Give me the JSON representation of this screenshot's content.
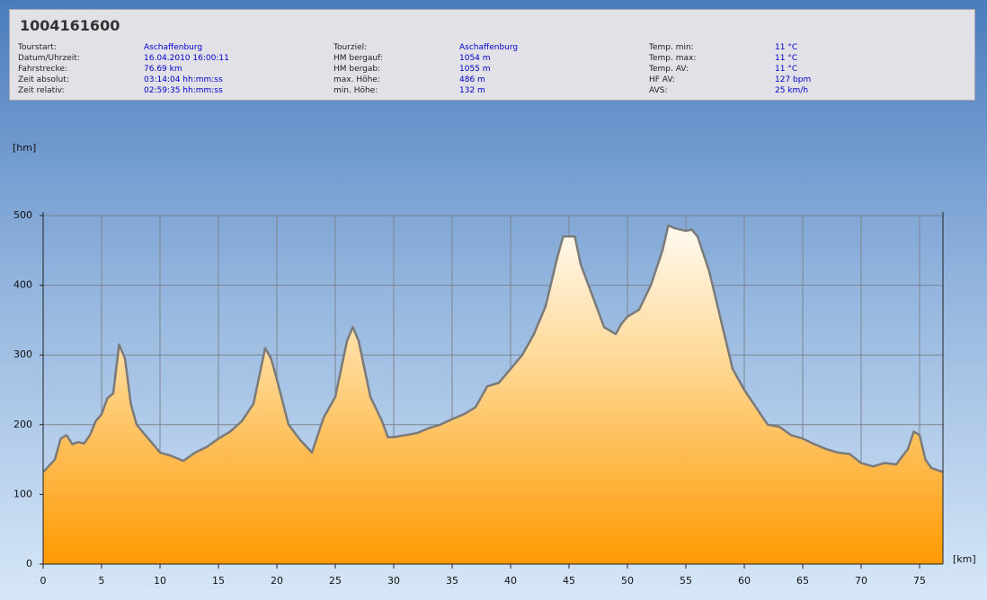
{
  "header": {
    "title": "1004161600",
    "columns": [
      [
        {
          "label": "Tourstart:",
          "value": "Aschaffenburg"
        },
        {
          "label": "Datum/Uhrzeit:",
          "value": "16.04.2010 16:00:11"
        },
        {
          "label": "Fahrstrecke:",
          "value": "76.69 km"
        },
        {
          "label": "Zeit absolut:",
          "value": "03:14:04 hh:mm:ss"
        },
        {
          "label": "Zeit relativ:",
          "value": "02:59:35 hh:mm:ss"
        }
      ],
      [
        {
          "label": "Tourziel:",
          "value": "Aschaffenburg"
        },
        {
          "label": "HM bergauf:",
          "value": "1054 m"
        },
        {
          "label": "HM bergab:",
          "value": "1055 m"
        },
        {
          "label": "max. Höhe:",
          "value": "486 m"
        },
        {
          "label": "min. Höhe:",
          "value": "132 m"
        }
      ],
      [
        {
          "label": "Temp. min:",
          "value": "11 °C"
        },
        {
          "label": "Temp. max:",
          "value": "11 °C"
        },
        {
          "label": "Temp. AV:",
          "value": "11 °C"
        },
        {
          "label": "HF AV:",
          "value": "127 bpm"
        },
        {
          "label": "AVS:",
          "value": "25 km/h"
        }
      ]
    ]
  },
  "chart_data": {
    "type": "area",
    "y_label": "[hm]",
    "x_label": "[km]",
    "x": [
      0,
      1,
      1.5,
      2,
      2.5,
      3,
      3.5,
      4,
      4.5,
      5,
      5.5,
      6,
      6.5,
      7,
      7.5,
      8,
      9,
      10,
      11,
      12,
      13,
      14,
      15,
      16,
      17,
      18,
      18.5,
      19,
      19.5,
      20,
      21,
      22,
      23,
      24,
      25,
      26,
      26.5,
      27,
      28,
      29,
      29.5,
      30,
      31,
      32,
      33,
      34,
      35,
      36,
      37,
      38,
      39,
      40,
      41,
      42,
      43,
      44,
      44.5,
      45.5,
      46,
      47,
      48,
      49,
      49.5,
      50,
      51,
      52,
      53,
      53.5,
      54,
      55,
      55.5,
      56,
      57,
      58,
      59,
      60,
      61,
      62,
      63,
      64,
      65,
      66,
      67,
      68,
      69,
      70,
      71,
      72,
      73,
      74,
      74.5,
      75,
      75.5,
      76,
      77
    ],
    "y": [
      132,
      150,
      180,
      185,
      172,
      175,
      173,
      185,
      205,
      215,
      238,
      245,
      315,
      295,
      230,
      200,
      180,
      160,
      155,
      148,
      160,
      168,
      180,
      190,
      205,
      230,
      270,
      310,
      295,
      265,
      200,
      178,
      160,
      210,
      240,
      320,
      340,
      320,
      240,
      205,
      182,
      182,
      185,
      188,
      195,
      200,
      208,
      215,
      225,
      255,
      260,
      280,
      300,
      330,
      370,
      440,
      470,
      470,
      430,
      385,
      340,
      330,
      345,
      355,
      365,
      400,
      450,
      486,
      482,
      478,
      480,
      470,
      420,
      350,
      280,
      250,
      225,
      200,
      197,
      185,
      180,
      172,
      165,
      160,
      158,
      145,
      140,
      145,
      143,
      165,
      190,
      185,
      150,
      138,
      132
    ],
    "color": "#ff9900",
    "line_color": "#7a7a7a",
    "grid": true,
    "xlim": [
      0,
      77
    ],
    "ylim": [
      0,
      500
    ],
    "xticks": [
      0,
      5,
      10,
      15,
      20,
      25,
      30,
      35,
      40,
      45,
      50,
      55,
      60,
      65,
      70,
      75
    ],
    "yticks": [
      0,
      100,
      200,
      300,
      400,
      500
    ]
  }
}
